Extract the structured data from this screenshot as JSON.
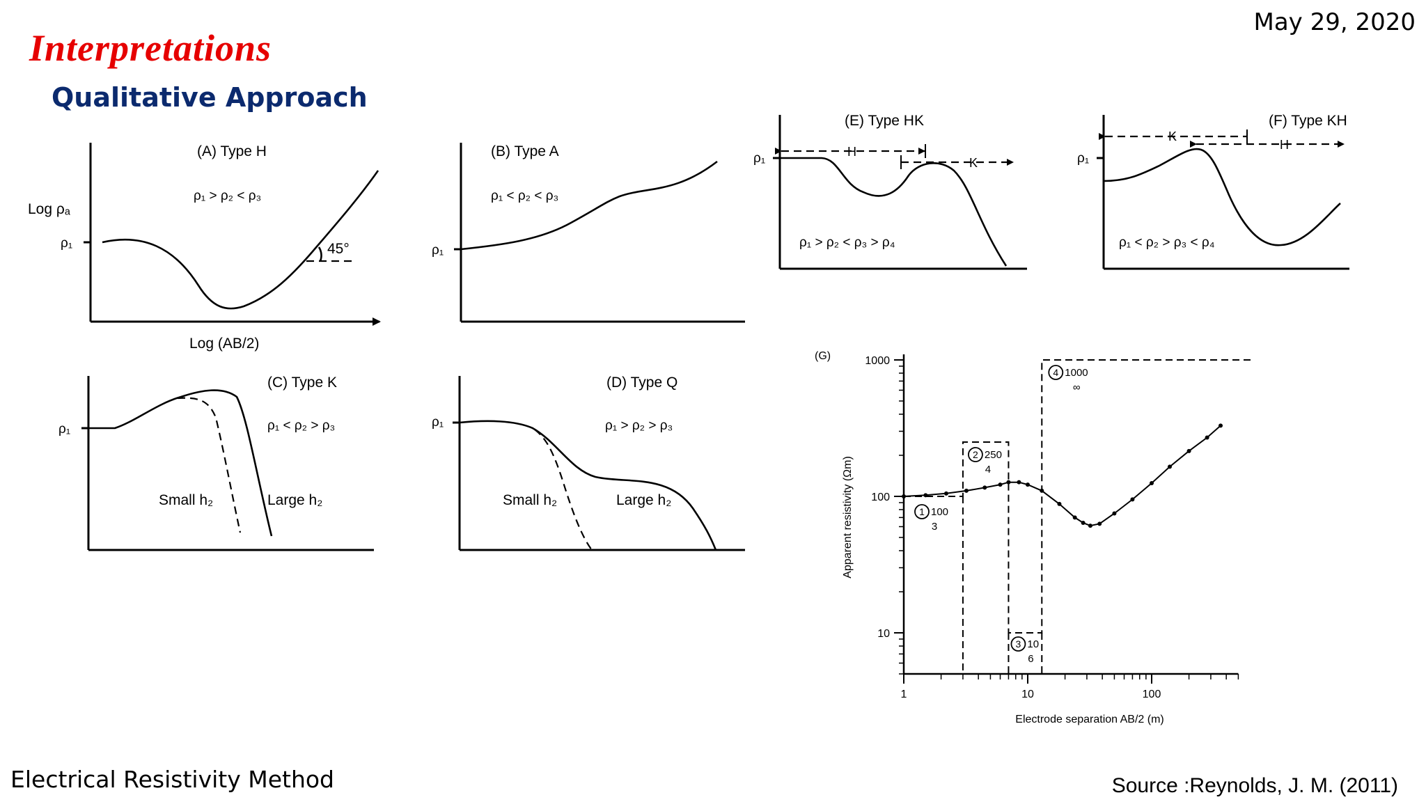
{
  "header": {
    "date": "May 29, 2020",
    "title": "Interpretations",
    "subtitle": "Qualitative Approach"
  },
  "footer": {
    "left": "Electrical Resistivity Method",
    "source": "Source :Reynolds, J. M. (2011)"
  },
  "panels": {
    "a": {
      "title": "(A) Type H",
      "relation": "ρ₁ > ρ₂ < ρ₃",
      "y_axis": "Log ρₐ",
      "x_axis": "Log (AB/2)",
      "rho": "ρ₁",
      "angle": "45°"
    },
    "b": {
      "title": "(B) Type A",
      "relation": "ρ₁ < ρ₂ < ρ₃",
      "rho": "ρ₁"
    },
    "c": {
      "title": "(C) Type K",
      "relation": "ρ₁ < ρ₂ > ρ₃",
      "rho": "ρ₁",
      "small": "Small h₂",
      "large": "Large h₂"
    },
    "d": {
      "title": "(D) Type Q",
      "relation": "ρ₁ > ρ₂ > ρ₃",
      "rho": "ρ₁",
      "small": "Small h₂",
      "large": "Large h₂"
    },
    "e": {
      "title": "(E) Type HK",
      "relation": "ρ₁ > ρ₂ < ρ₃ > ρ₄",
      "rho": "ρ₁",
      "seg1": "H",
      "seg2": "K"
    },
    "f": {
      "title": "(F) Type KH",
      "relation": "ρ₁ < ρ₂ > ρ₃ < ρ₄",
      "rho": "ρ₁",
      "seg1": "K",
      "seg2": "H"
    }
  },
  "chart_data": {
    "type": "line",
    "title": "(G)",
    "xlabel": "Electrode separation AB/2 (m)",
    "ylabel": "Apparent resistivity (Ωm)",
    "xscale": "log",
    "yscale": "log",
    "xlim": [
      1,
      700
    ],
    "ylim": [
      5,
      1000
    ],
    "xticks": [
      "1",
      "10",
      "100"
    ],
    "yticks": [
      "1000",
      "100",
      "10"
    ],
    "series": [
      {
        "name": "apparent resistivity",
        "x": [
          1.0,
          1.5,
          2.2,
          3.2,
          4.5,
          6.0,
          7.0,
          8.5,
          10.0,
          13.0,
          18.0,
          24.0,
          28.0,
          32.0,
          38.0,
          50.0,
          70.0,
          100.0,
          140.0,
          200.0,
          280.0,
          360.0
        ],
        "y": [
          100,
          102,
          105,
          110,
          116,
          122,
          127,
          127,
          122,
          110,
          88,
          70,
          64,
          61,
          63,
          75,
          95,
          125,
          165,
          215,
          270,
          330
        ]
      }
    ],
    "layers": [
      {
        "label": "1",
        "resistivity": "100",
        "thickness": "3"
      },
      {
        "label": "2",
        "resistivity": "250",
        "thickness": "4"
      },
      {
        "label": "3",
        "resistivity": "10",
        "thickness": "6"
      },
      {
        "label": "4",
        "resistivity": "1000",
        "thickness": "∞"
      }
    ]
  }
}
